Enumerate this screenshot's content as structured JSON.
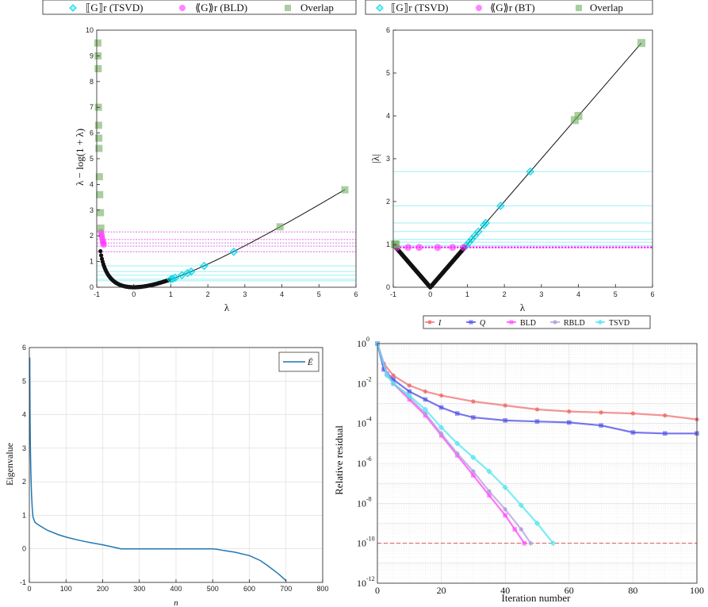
{
  "chart_data": [
    {
      "id": "A",
      "type": "scatter",
      "xlabel": "λ",
      "ylabel": "λ − log(1 + λ)",
      "xlim": [
        -1,
        6
      ],
      "ylim": [
        0,
        10
      ],
      "xticks": [
        "-1",
        "0",
        "1",
        "2",
        "3",
        "4",
        "5",
        "6"
      ],
      "yticks": [
        "0",
        "1",
        "2",
        "3",
        "4",
        "5",
        "6",
        "7",
        "8",
        "9",
        "10"
      ],
      "grid": false,
      "legend": {
        "placement": "top-outside",
        "entries": [
          "⟦G⟧r (TSVD)",
          "⟪G⟫r (BLD)",
          "Overlap"
        ]
      },
      "curve": "y = x - ln(1 + x)",
      "series": [
        {
          "name": "⟦G⟧r (TSVD)",
          "color": "#00d8e8",
          "marker": "diamond",
          "x": [
            1.0,
            1.05,
            1.12,
            1.3,
            1.45,
            1.55,
            1.9,
            2.7
          ],
          "y": [
            0.31,
            0.33,
            0.37,
            0.47,
            0.55,
            0.61,
            0.83,
            1.38
          ]
        },
        {
          "name": "⟪G⟫r (BLD)",
          "color": "#ff33ff",
          "marker": "circle",
          "x": [
            -0.885,
            -0.87,
            -0.86,
            -0.845,
            -0.83,
            -0.82,
            -0.81
          ],
          "y": [
            2.15,
            2.05,
            1.96,
            1.86,
            1.77,
            1.71,
            1.65
          ]
        },
        {
          "name": "Overlap",
          "color": "#6fae5f",
          "marker": "square",
          "x": [
            -0.97,
            -0.965,
            -0.96,
            -0.955,
            -0.95,
            -0.945,
            -0.94,
            -0.93,
            -0.92,
            -0.9,
            -0.89,
            3.95,
            5.7
          ],
          "y": [
            9.5,
            9.0,
            8.5,
            7.0,
            6.3,
            5.8,
            5.4,
            4.3,
            3.6,
            2.9,
            2.3,
            2.35,
            3.79
          ]
        }
      ],
      "hlines_tsvd": [
        0.25,
        0.31,
        0.47,
        0.61,
        0.83
      ],
      "hlines_bld": [
        1.38,
        1.6,
        1.72,
        1.86,
        2.15
      ]
    },
    {
      "id": "B",
      "type": "scatter",
      "xlabel": "λ",
      "ylabel": "|λ|",
      "xlim": [
        -1,
        6
      ],
      "ylim": [
        0,
        6
      ],
      "xticks": [
        "-1",
        "0",
        "1",
        "2",
        "3",
        "4",
        "5",
        "6"
      ],
      "yticks": [
        "0",
        "1",
        "2",
        "3",
        "4",
        "5",
        "6"
      ],
      "grid": false,
      "legend": {
        "placement": "top-outside",
        "entries": [
          "⟦G⟧r (TSVD)",
          "⟪G⟫r (BT)",
          "Overlap"
        ]
      },
      "curve": "y = |x|",
      "series": [
        {
          "name": "⟦G⟧r (TSVD)",
          "color": "#00d8e8",
          "marker": "diamond",
          "x": [
            0.97,
            1.05,
            1.12,
            1.2,
            1.3,
            1.45,
            1.5,
            1.9,
            2.7
          ],
          "y": [
            0.97,
            1.05,
            1.12,
            1.2,
            1.3,
            1.45,
            1.5,
            1.9,
            2.7
          ]
        },
        {
          "name": "⟪G⟫r (BT)",
          "color": "#ff33ff",
          "marker": "circle",
          "x": [
            -0.9,
            -0.6,
            -0.3,
            0.2,
            0.6,
            0.9
          ],
          "y": [
            0.93,
            0.93,
            0.93,
            0.93,
            0.93,
            0.93
          ]
        },
        {
          "name": "Overlap",
          "color": "#6fae5f",
          "marker": "square",
          "x": [
            -0.96,
            -0.93,
            3.9,
            4.0,
            5.7
          ],
          "y": [
            1.0,
            1.0,
            3.9,
            4.0,
            5.7
          ]
        }
      ],
      "hlines_tsvd": [
        0.97,
        1.05,
        1.12,
        1.3,
        1.5,
        1.9,
        2.7
      ]
    },
    {
      "id": "C",
      "type": "line",
      "xlabel": "n",
      "ylabel": "Eigenvalue",
      "xlim": [
        0,
        800
      ],
      "ylim": [
        -1,
        6
      ],
      "xticks": [
        "0",
        "100",
        "200",
        "300",
        "400",
        "500",
        "600",
        "700",
        "800"
      ],
      "yticks": [
        "-1",
        "0",
        "1",
        "2",
        "3",
        "4",
        "5",
        "6"
      ],
      "grid": true,
      "legend": {
        "placement": "top-right",
        "entries": [
          "Ē"
        ]
      },
      "series": [
        {
          "name": "Ē",
          "color": "#1f77b4",
          "x": [
            1,
            2,
            3,
            4,
            6,
            8,
            10,
            15,
            20,
            30,
            50,
            80,
            100,
            130,
            160,
            200,
            230,
            250,
            300,
            400,
            500,
            510,
            530,
            560,
            600,
            630,
            650,
            680,
            700
          ],
          "y": [
            5.7,
            3.9,
            2.9,
            2.3,
            1.6,
            1.2,
            0.95,
            0.8,
            0.75,
            0.68,
            0.55,
            0.42,
            0.35,
            0.27,
            0.2,
            0.12,
            0.05,
            0.0,
            0.0,
            0.0,
            0.0,
            -0.01,
            -0.05,
            -0.1,
            -0.2,
            -0.35,
            -0.5,
            -0.75,
            -0.95
          ]
        }
      ]
    },
    {
      "id": "D",
      "type": "line",
      "xlabel": "Iteration number",
      "ylabel": "Relative residual",
      "xlim": [
        0,
        100
      ],
      "ylim_log10": [
        -12,
        0
      ],
      "xticks": [
        "0",
        "20",
        "40",
        "60",
        "80",
        "100"
      ],
      "yticks": [
        "10",
        "10",
        "10",
        "10",
        "10",
        "10",
        "10"
      ],
      "ytick_exponents": [
        "0",
        "-2",
        "-4",
        "-6",
        "-8",
        "-10",
        "-12"
      ],
      "yscale": "log",
      "grid": true,
      "legend": {
        "placement": "top-outside",
        "entries": [
          "I",
          "Q",
          "BLD",
          "RBLD",
          "TSVD"
        ]
      },
      "tolerance_log10": -10,
      "series": [
        {
          "name": "I",
          "color": "#f07070",
          "marker": "star",
          "x": [
            0,
            2,
            5,
            10,
            15,
            20,
            30,
            40,
            50,
            60,
            70,
            80,
            90,
            100
          ],
          "log10y": [
            0,
            -1.0,
            -1.6,
            -2.1,
            -2.4,
            -2.6,
            -2.9,
            -3.1,
            -3.3,
            -3.4,
            -3.45,
            -3.5,
            -3.6,
            -3.8
          ]
        },
        {
          "name": "Q",
          "color": "#4a4ae8",
          "marker": "square",
          "x": [
            0,
            2,
            5,
            10,
            15,
            20,
            25,
            30,
            40,
            50,
            60,
            70,
            80,
            90,
            100
          ],
          "log10y": [
            0,
            -1.3,
            -1.8,
            -2.4,
            -2.8,
            -3.2,
            -3.5,
            -3.7,
            -3.85,
            -3.9,
            -3.95,
            -4.1,
            -4.45,
            -4.5,
            -4.5
          ]
        },
        {
          "name": "BLD",
          "color": "#ff44ff",
          "marker": "square",
          "x": [
            0,
            3,
            5,
            10,
            15,
            20,
            25,
            30,
            35,
            40,
            43,
            46
          ],
          "log10y": [
            0,
            -1.5,
            -2.0,
            -2.8,
            -3.6,
            -4.6,
            -5.6,
            -6.6,
            -7.6,
            -8.6,
            -9.3,
            -10.0
          ]
        },
        {
          "name": "RBLD",
          "color": "#b39ddb",
          "marker": "star",
          "x": [
            0,
            3,
            5,
            10,
            15,
            20,
            25,
            30,
            35,
            40,
            45,
            48
          ],
          "log10y": [
            0,
            -1.5,
            -2.0,
            -2.7,
            -3.5,
            -4.5,
            -5.5,
            -6.4,
            -7.4,
            -8.3,
            -9.3,
            -10.0
          ]
        },
        {
          "name": "TSVD",
          "color": "#4fe6f0",
          "marker": "diamond",
          "x": [
            0,
            3,
            5,
            10,
            15,
            20,
            25,
            30,
            35,
            40,
            45,
            50,
            55
          ],
          "log10y": [
            0,
            -1.6,
            -2.0,
            -2.6,
            -3.3,
            -4.2,
            -5.0,
            -5.7,
            -6.4,
            -7.2,
            -8.1,
            -9.0,
            -10.0
          ]
        }
      ]
    }
  ]
}
